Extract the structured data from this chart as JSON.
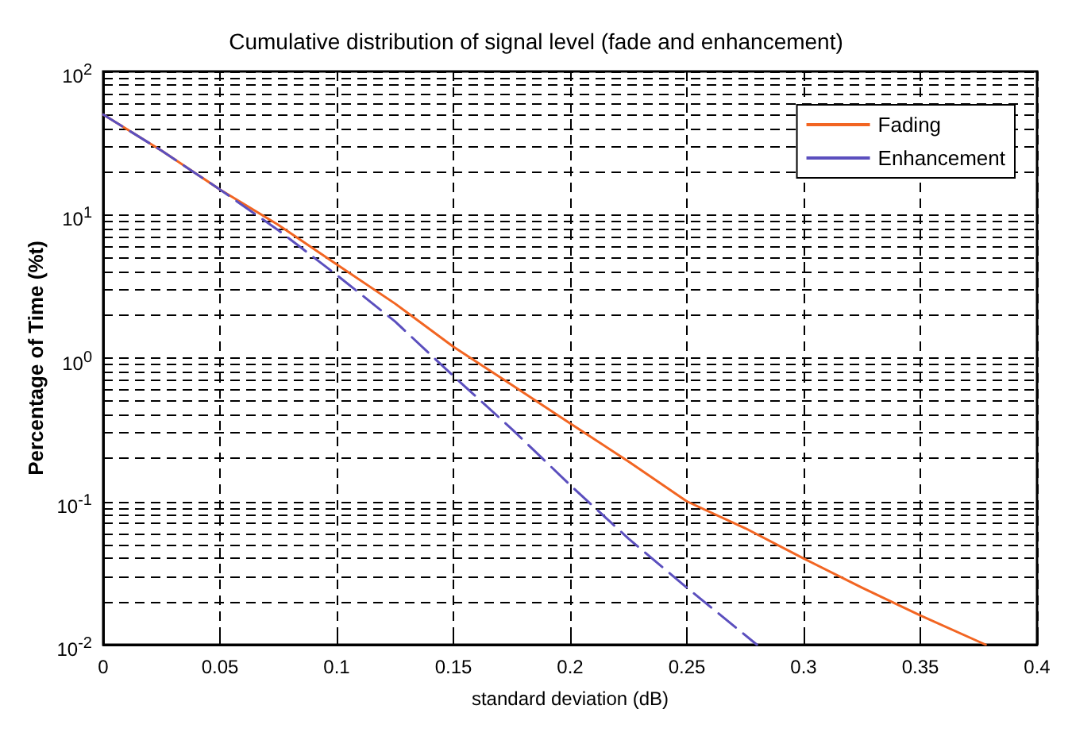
{
  "chart_data": {
    "type": "line",
    "title": "Cumulative distribution of signal level (fade and enhancement)",
    "xlabel": "standard deviation (dB)",
    "ylabel": "Percentage of Time (%t)",
    "series": [
      {
        "name": "Fading",
        "color": "#f26522",
        "line_style": "solid",
        "x": [
          0,
          0.025,
          0.05,
          0.075,
          0.1,
          0.125,
          0.15,
          0.175,
          0.2,
          0.225,
          0.25,
          0.275,
          0.3,
          0.325,
          0.35,
          0.378
        ],
        "values": [
          50,
          28,
          15,
          8.5,
          4.5,
          2.4,
          1.2,
          0.65,
          0.35,
          0.19,
          0.1,
          0.065,
          0.04,
          0.025,
          0.016,
          0.01
        ]
      },
      {
        "name": "Enhancement",
        "color": "#5b4fbe",
        "line_style": "dashed",
        "x": [
          0,
          0.025,
          0.05,
          0.075,
          0.1,
          0.125,
          0.15,
          0.175,
          0.2,
          0.225,
          0.25,
          0.28
        ],
        "values": [
          50,
          28,
          15,
          7.8,
          3.8,
          1.8,
          0.75,
          0.32,
          0.13,
          0.055,
          0.025,
          0.01
        ]
      }
    ],
    "xlim": [
      0,
      0.4
    ],
    "xticks": [
      0,
      0.05,
      0.1,
      0.15,
      0.2,
      0.25,
      0.3,
      0.35,
      0.4
    ],
    "ylim": [
      0.01,
      100
    ],
    "yticks": [
      {
        "value": 0.01,
        "label": "10$^{-2}$"
      },
      {
        "value": 0.1,
        "label": "10$^{-1}$"
      },
      {
        "value": 1,
        "label": "10$^{0}$"
      },
      {
        "value": 10,
        "label": "10$^{1}$"
      },
      {
        "value": 100,
        "label": "10$^{2}$"
      }
    ],
    "log": "y",
    "grid": true,
    "legend": "top right",
    "marker": "none"
  }
}
